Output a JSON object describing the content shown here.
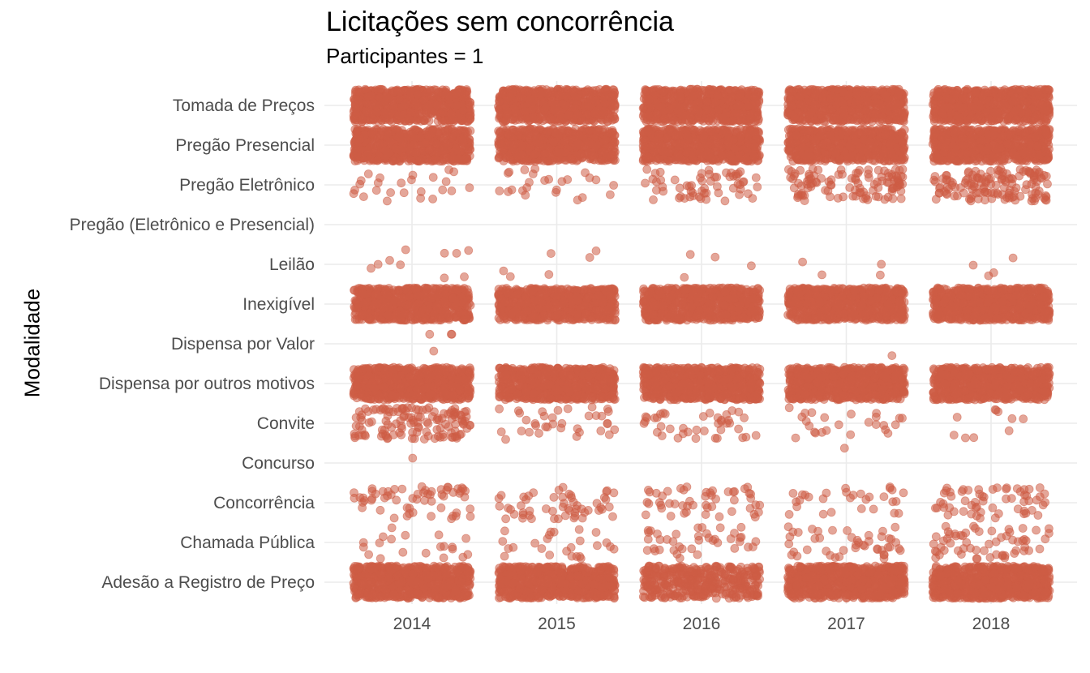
{
  "chart_data": {
    "type": "scatter",
    "title": "Licitações sem concorrência",
    "subtitle": "Participantes = 1",
    "xlabel": "",
    "ylabel": "Modalidade",
    "x_categories": [
      "2014",
      "2015",
      "2016",
      "2017",
      "2018"
    ],
    "y_categories": [
      "Adesão a Registro de Preço",
      "Chamada Pública",
      "Concorrência",
      "Concurso",
      "Convite",
      "Dispensa por outros motivos",
      "Dispensa por Valor",
      "Inexigível",
      "Leilão",
      "Pregão (Eletrônico e Presencial)",
      "Pregão Eletrônico",
      "Pregão Presencial",
      "Tomada de Preços"
    ],
    "jitter": true,
    "point_color": "#CD5C45",
    "point_alpha": 0.55,
    "grid": true,
    "legend": "none",
    "approx_point_counts": {
      "Adesão a Registro de Preço": [
        800,
        800,
        400,
        800,
        800
      ],
      "Chamada Pública": [
        20,
        25,
        40,
        45,
        60
      ],
      "Concorrência": [
        60,
        55,
        50,
        30,
        60
      ],
      "Concurso": [
        1,
        0,
        0,
        1,
        0
      ],
      "Convite": [
        130,
        35,
        40,
        25,
        10
      ],
      "Dispensa por outros motivos": [
        800,
        800,
        800,
        800,
        800
      ],
      "Dispensa por Valor": [
        4,
        0,
        0,
        1,
        0
      ],
      "Inexigível": [
        800,
        800,
        800,
        800,
        800
      ],
      "Leilão": [
        10,
        6,
        4,
        4,
        4
      ],
      "Pregão (Eletrônico e Presencial)": [
        0,
        0,
        0,
        0,
        0
      ],
      "Pregão Eletrônico": [
        25,
        25,
        60,
        110,
        140
      ],
      "Pregão Presencial": [
        800,
        800,
        800,
        800,
        800
      ],
      "Tomada de Preços": [
        800,
        800,
        800,
        800,
        800
      ]
    }
  }
}
